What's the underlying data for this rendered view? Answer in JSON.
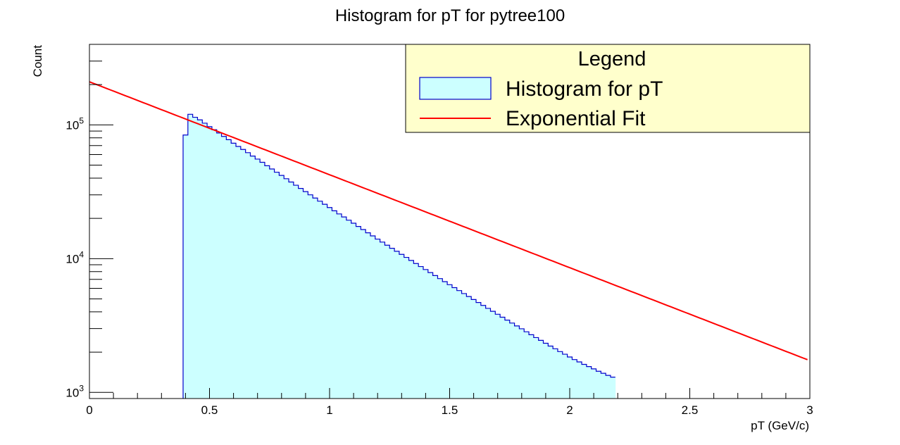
{
  "chart_data": {
    "type": "bar",
    "title": "Histogram for pT for pytree100",
    "xlabel": "pT (GeV/c)",
    "ylabel": "Count",
    "xlim": [
      0,
      3
    ],
    "ylim": [
      900,
      400000
    ],
    "yscale": "log",
    "grid": false,
    "x_tick_labels": [
      "0",
      "0.5",
      "1",
      "1.5",
      "2",
      "2.5",
      "3"
    ],
    "y_tick_labels": [
      {
        "base": "10",
        "exp": "3",
        "value": 1000
      },
      {
        "base": "10",
        "exp": "4",
        "value": 10000
      },
      {
        "base": "10",
        "exp": "5",
        "value": 100000
      }
    ],
    "legend": {
      "title": "Legend",
      "position": "top-right",
      "entries": [
        "Histogram for pT",
        "Exponential Fit"
      ]
    },
    "series": [
      {
        "name": "Histogram for pT",
        "kind": "histogram",
        "bin_width": 0.02,
        "bin_start": 0.39,
        "values": [
          84000,
          120000,
          114000,
          109000,
          103000,
          97000,
          92000,
          87000,
          82000,
          77500,
          73000,
          69000,
          65500,
          62000,
          58500,
          55500,
          52500,
          49500,
          46800,
          44300,
          41900,
          39600,
          37400,
          35400,
          33500,
          31700,
          30000,
          28400,
          26900,
          25500,
          24100,
          22800,
          21600,
          20500,
          19400,
          18400,
          17400,
          16500,
          15600,
          14800,
          14000,
          13300,
          12600,
          11950,
          11350,
          10770,
          10220,
          9700,
          9200,
          8730,
          8290,
          7870,
          7470,
          7090,
          6730,
          6390,
          6070,
          5770,
          5480,
          5210,
          4950,
          4700,
          4470,
          4250,
          4040,
          3840,
          3650,
          3470,
          3300,
          3140,
          2990,
          2840,
          2700,
          2570,
          2450,
          2330,
          2220,
          2120,
          2020,
          1930,
          1840,
          1760,
          1690,
          1620,
          1560,
          1500,
          1440,
          1390,
          1340,
          1300
        ],
        "fill_color": "#ccffff",
        "line_color": "#0000cc"
      },
      {
        "name": "Exponential Fit",
        "kind": "line",
        "function": "A*exp(-b*x)",
        "A": 210000,
        "b": 1.6,
        "x_range": [
          0,
          2.99
        ],
        "line_color": "#ff0000"
      }
    ]
  }
}
